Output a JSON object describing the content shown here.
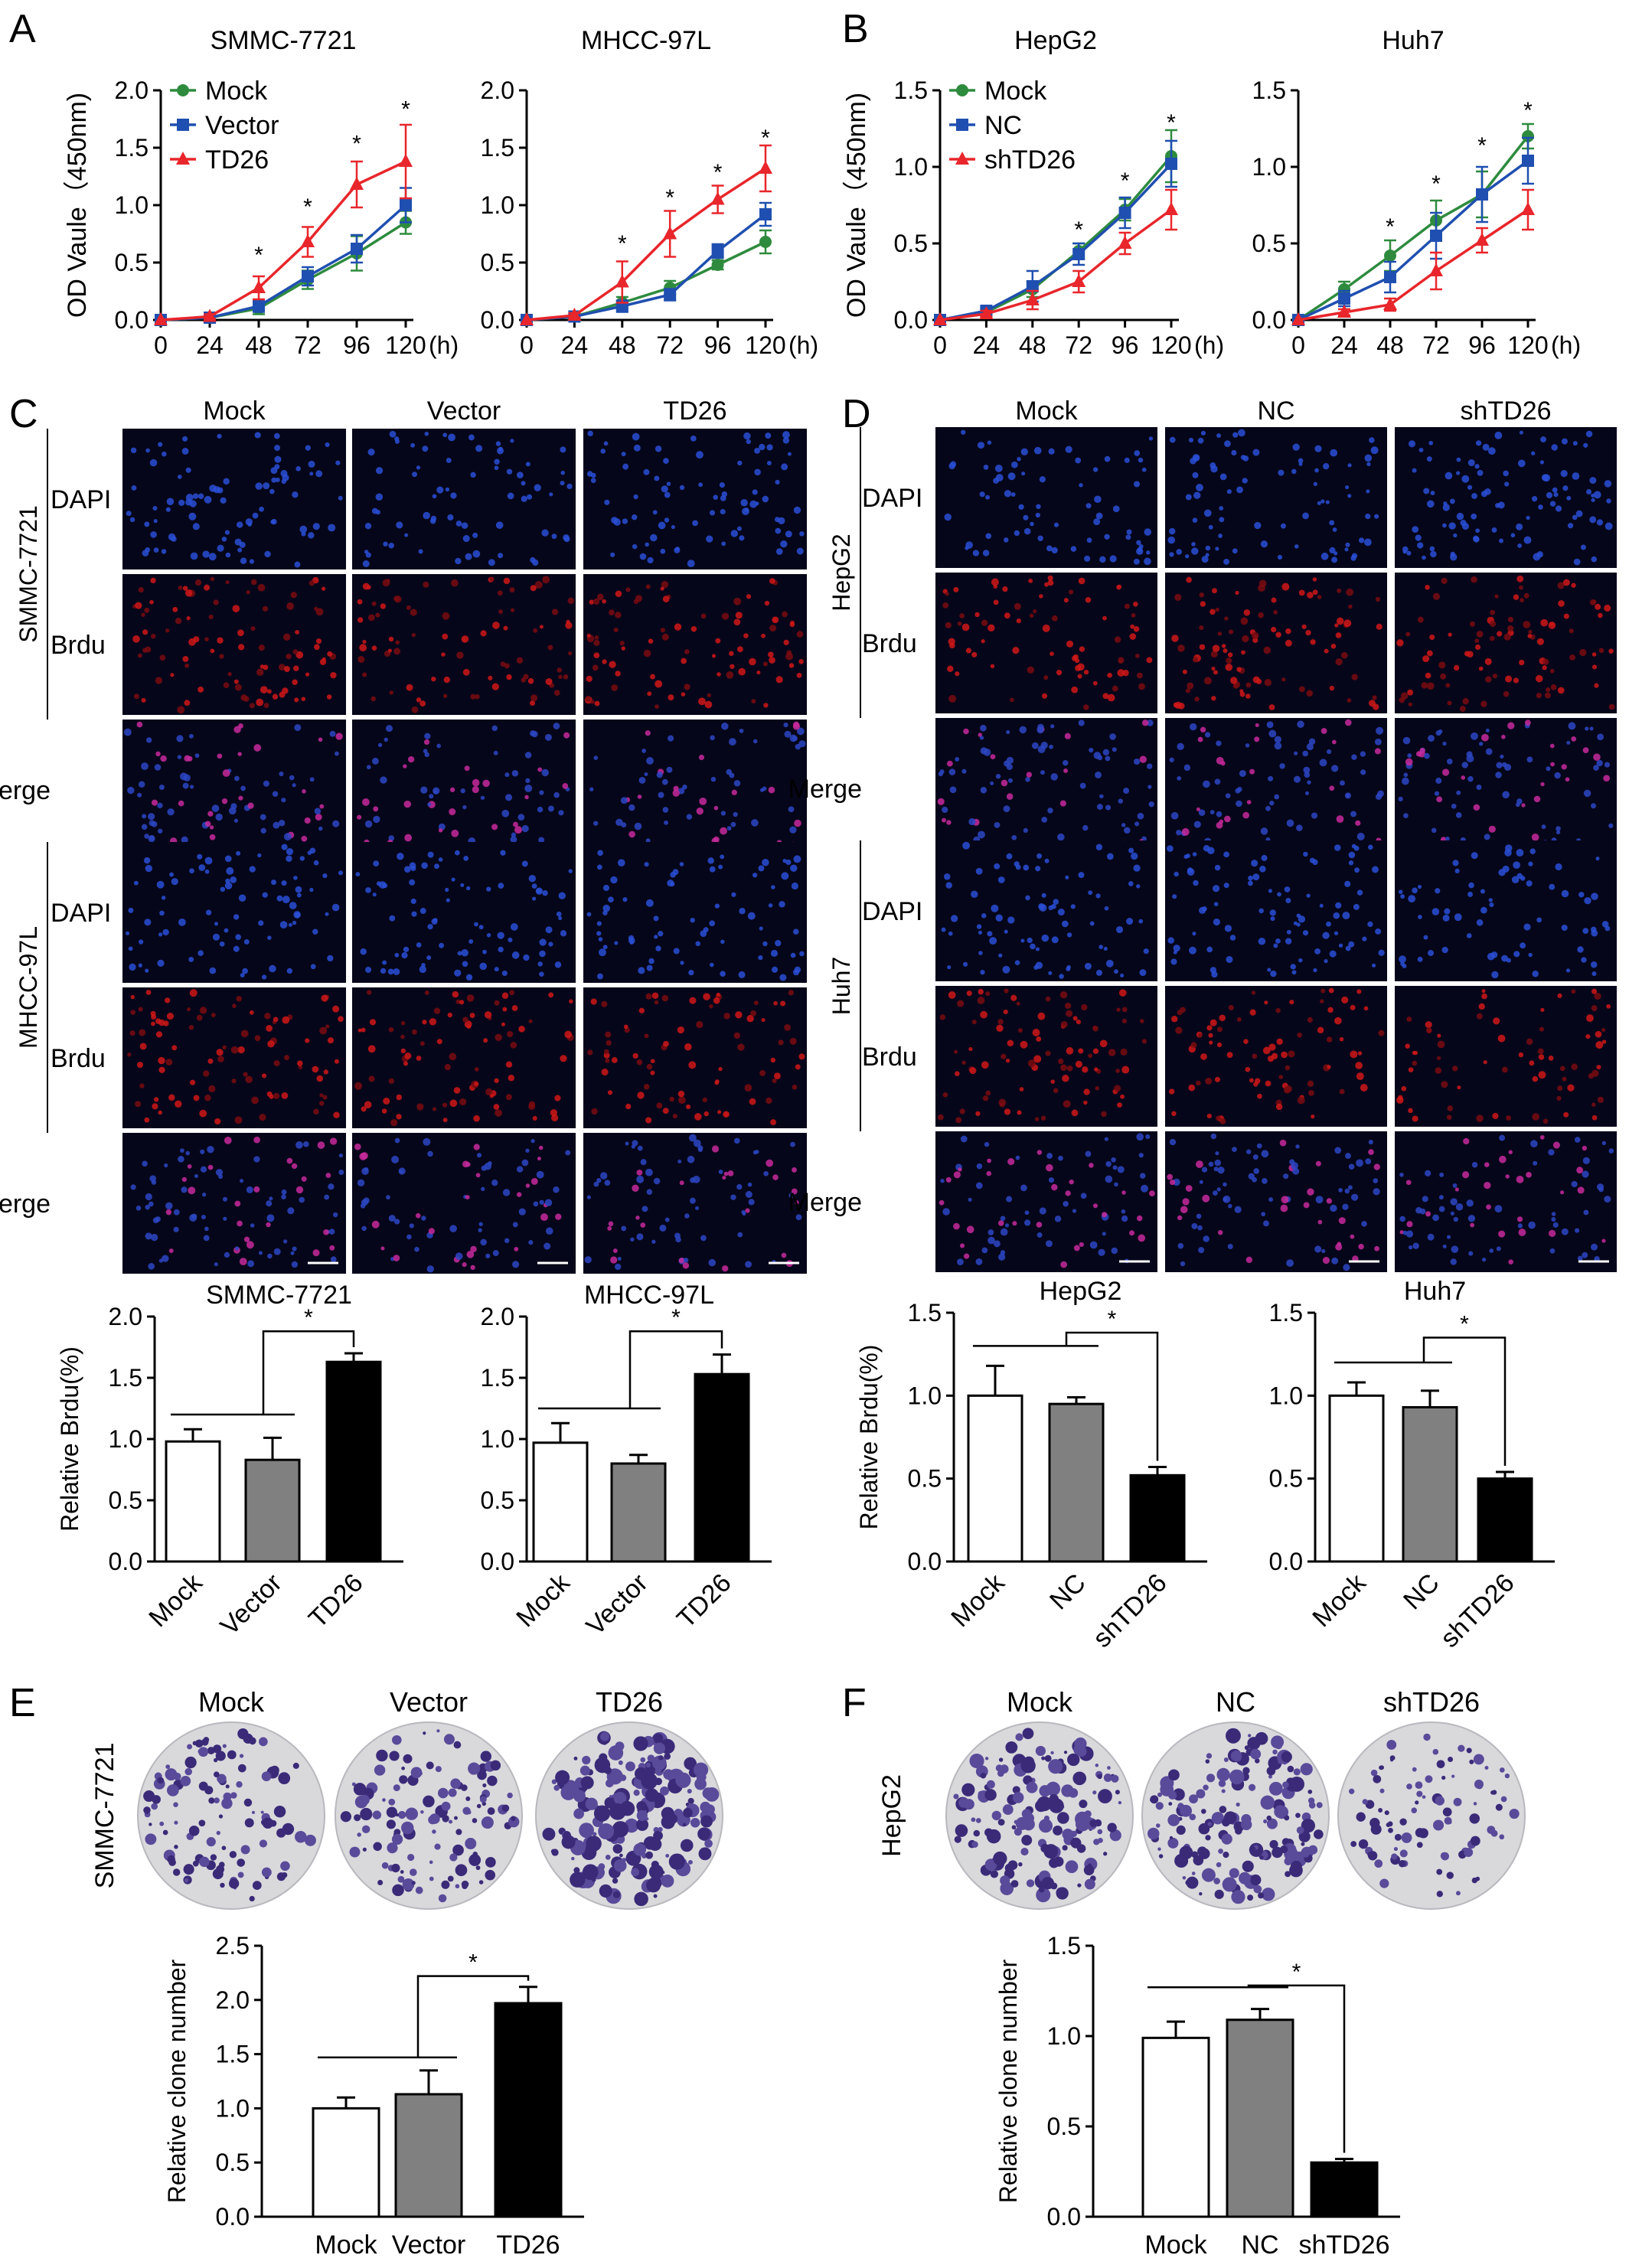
{
  "panel_letters": [
    "A",
    "B",
    "C",
    "D",
    "E",
    "F"
  ],
  "colors": {
    "mock": "#2e8b3e",
    "vector": "#1f4fb0",
    "td26": "#e8262b",
    "bar_gray": "#808080",
    "bar_black": "#000000",
    "bar_white": "#ffffff"
  },
  "shared": {
    "od_ylabel": "OD Vaule（450nm)",
    "brdu_ylabel": "Relative Brdu(%)",
    "clone_ylabel": "Relative clone number",
    "x_ticks": [
      "0",
      "24",
      "48",
      "72",
      "96",
      "120"
    ],
    "x_unit": "(h)",
    "sig": "*"
  },
  "chart_data": [
    {
      "id": "A1",
      "type": "line",
      "title": "SMMC-7721",
      "ylabel": "OD Vaule（450nm)",
      "ylim": [
        0,
        2.0
      ],
      "yticks": [
        "0.0",
        "0.5",
        "1.0",
        "1.5",
        "2.0"
      ],
      "x": [
        0,
        24,
        48,
        72,
        96,
        120
      ],
      "series": [
        {
          "name": "Mock",
          "color": "#2e8b3e",
          "marker": "circle",
          "values": [
            0.0,
            0.02,
            0.1,
            0.35,
            0.58,
            0.85
          ],
          "err": [
            0,
            0.02,
            0.05,
            0.08,
            0.15,
            0.1
          ]
        },
        {
          "name": "Vector",
          "color": "#1f4fb0",
          "marker": "square",
          "values": [
            0.0,
            0.02,
            0.12,
            0.38,
            0.62,
            1.0
          ],
          "err": [
            0,
            0.02,
            0.05,
            0.08,
            0.12,
            0.15
          ]
        },
        {
          "name": "TD26",
          "color": "#e8262b",
          "marker": "triangle",
          "values": [
            0.0,
            0.03,
            0.28,
            0.68,
            1.18,
            1.38
          ],
          "err": [
            0,
            0.02,
            0.1,
            0.13,
            0.2,
            0.32
          ]
        }
      ],
      "sig_x": [
        48,
        72,
        96,
        120
      ],
      "sig_y": [
        0.58,
        1.0,
        1.55,
        1.85
      ]
    },
    {
      "id": "A2",
      "type": "line",
      "title": "MHCC-97L",
      "ylabel": "",
      "ylim": [
        0,
        2.0
      ],
      "yticks": [
        "0.0",
        "0.5",
        "1.0",
        "1.5",
        "2.0"
      ],
      "x": [
        0,
        24,
        48,
        72,
        96,
        120
      ],
      "series": [
        {
          "name": "Mock",
          "color": "#2e8b3e",
          "marker": "circle",
          "values": [
            0.0,
            0.03,
            0.15,
            0.28,
            0.48,
            0.68
          ],
          "err": [
            0,
            0.02,
            0.05,
            0.06,
            0.04,
            0.1
          ]
        },
        {
          "name": "Vector",
          "color": "#1f4fb0",
          "marker": "square",
          "values": [
            0.0,
            0.03,
            0.12,
            0.22,
            0.6,
            0.92
          ],
          "err": [
            0,
            0.02,
            0.05,
            0.05,
            0.06,
            0.1
          ]
        },
        {
          "name": "TD26",
          "color": "#e8262b",
          "marker": "triangle",
          "values": [
            0.0,
            0.04,
            0.33,
            0.75,
            1.05,
            1.32
          ],
          "err": [
            0,
            0.02,
            0.18,
            0.2,
            0.12,
            0.2
          ]
        }
      ],
      "sig_x": [
        48,
        72,
        96,
        120
      ],
      "sig_y": [
        0.68,
        1.08,
        1.3,
        1.6
      ]
    },
    {
      "id": "B1",
      "type": "line",
      "title": "HepG2",
      "ylabel": "OD Vaule（450nm)",
      "ylim": [
        0,
        1.5
      ],
      "yticks": [
        "0.0",
        "0.5",
        "1.0",
        "1.5"
      ],
      "x": [
        0,
        24,
        48,
        72,
        96,
        120
      ],
      "series": [
        {
          "name": "Mock",
          "color": "#2e8b3e",
          "marker": "circle",
          "values": [
            0.0,
            0.05,
            0.2,
            0.45,
            0.72,
            1.07
          ],
          "err": [
            0,
            0.02,
            0.05,
            0.05,
            0.07,
            0.17
          ]
        },
        {
          "name": "NC",
          "color": "#1f4fb0",
          "marker": "square",
          "values": [
            0.0,
            0.06,
            0.22,
            0.43,
            0.7,
            1.02
          ],
          "err": [
            0,
            0.02,
            0.1,
            0.07,
            0.1,
            0.15
          ]
        },
        {
          "name": "shTD26",
          "color": "#e8262b",
          "marker": "triangle",
          "values": [
            0.0,
            0.04,
            0.13,
            0.25,
            0.5,
            0.72
          ],
          "err": [
            0,
            0.02,
            0.06,
            0.07,
            0.07,
            0.13
          ]
        }
      ],
      "sig_x": [
        72,
        96,
        120
      ],
      "sig_y": [
        0.6,
        0.92,
        1.3
      ]
    },
    {
      "id": "B2",
      "type": "line",
      "title": "Huh7",
      "ylabel": "",
      "ylim": [
        0,
        1.5
      ],
      "yticks": [
        "0.0",
        "0.5",
        "1.0",
        "1.5"
      ],
      "x": [
        0,
        24,
        48,
        72,
        96,
        120
      ],
      "series": [
        {
          "name": "Mock",
          "color": "#2e8b3e",
          "marker": "circle",
          "values": [
            0.0,
            0.2,
            0.42,
            0.65,
            0.82,
            1.2
          ],
          "err": [
            0,
            0.05,
            0.1,
            0.13,
            0.15,
            0.08
          ]
        },
        {
          "name": "NC",
          "color": "#1f4fb0",
          "marker": "square",
          "values": [
            0.0,
            0.14,
            0.28,
            0.55,
            0.82,
            1.04
          ],
          "err": [
            0,
            0.05,
            0.1,
            0.15,
            0.18,
            0.15
          ]
        },
        {
          "name": "shTD26",
          "color": "#e8262b",
          "marker": "triangle",
          "values": [
            0.0,
            0.05,
            0.1,
            0.32,
            0.52,
            0.72
          ],
          "err": [
            0,
            0.02,
            0.04,
            0.12,
            0.08,
            0.13
          ]
        }
      ],
      "sig_x": [
        48,
        72,
        96,
        120
      ],
      "sig_y": [
        0.62,
        0.9,
        1.15,
        1.38
      ]
    },
    {
      "id": "C1",
      "type": "bar",
      "title": "SMMC-7721",
      "ylabel": "Relative Brdu(%)",
      "ylim": [
        0,
        2.0
      ],
      "yticks": [
        "0.0",
        "0.5",
        "1.0",
        "1.5",
        "2.0"
      ],
      "categories": [
        "Mock",
        "Vector",
        "TD26"
      ],
      "values": [
        0.98,
        0.83,
        1.63
      ],
      "err": [
        0.1,
        0.18,
        0.07
      ],
      "fills": [
        "#ffffff",
        "#808080",
        "#000000"
      ],
      "sig": {
        "groups": [
          0,
          1
        ],
        "target": 2,
        "y": 1.88
      }
    },
    {
      "id": "C2",
      "type": "bar",
      "title": "MHCC-97L",
      "ylabel": "",
      "ylim": [
        0,
        2.0
      ],
      "yticks": [
        "0.0",
        "0.5",
        "1.0",
        "1.5",
        "2.0"
      ],
      "categories": [
        "Mock",
        "Vector",
        "TD26"
      ],
      "values": [
        0.97,
        0.8,
        1.53
      ],
      "err": [
        0.16,
        0.07,
        0.16
      ],
      "fills": [
        "#ffffff",
        "#808080",
        "#000000"
      ],
      "sig": {
        "groups": [
          0,
          1
        ],
        "target": 2,
        "y": 1.88
      }
    },
    {
      "id": "D1",
      "type": "bar",
      "title": "HepG2",
      "ylabel": "Relative Brdu(%)",
      "ylim": [
        0,
        1.5
      ],
      "yticks": [
        "0.0",
        "0.5",
        "1.0",
        "1.5"
      ],
      "categories": [
        "Mock",
        "NC",
        "shTD26"
      ],
      "values": [
        1.0,
        0.95,
        0.52
      ],
      "err": [
        0.18,
        0.04,
        0.05
      ],
      "fills": [
        "#ffffff",
        "#808080",
        "#000000"
      ],
      "sig": {
        "groups": [
          0,
          1
        ],
        "target": 2,
        "y": 1.38
      }
    },
    {
      "id": "D2",
      "type": "bar",
      "title": "Huh7",
      "ylabel": "",
      "ylim": [
        0,
        1.5
      ],
      "yticks": [
        "0.0",
        "0.5",
        "1.0",
        "1.5"
      ],
      "categories": [
        "Mock",
        "NC",
        "shTD26"
      ],
      "values": [
        1.0,
        0.93,
        0.5
      ],
      "err": [
        0.08,
        0.1,
        0.04
      ],
      "fills": [
        "#ffffff",
        "#808080",
        "#000000"
      ],
      "sig": {
        "groups": [
          0,
          1
        ],
        "target": 2,
        "y": 1.35
      }
    },
    {
      "id": "E",
      "type": "bar",
      "title": "",
      "ylabel": "Relative clone number",
      "ylim": [
        0,
        2.5
      ],
      "yticks": [
        "0.0",
        "0.5",
        "1.0",
        "1.5",
        "2.0",
        "2.5"
      ],
      "categories": [
        "Mock",
        "Vector",
        "TD26"
      ],
      "values": [
        1.0,
        1.13,
        1.97
      ],
      "err": [
        0.1,
        0.22,
        0.15
      ],
      "fills": [
        "#ffffff",
        "#808080",
        "#000000"
      ],
      "sig": {
        "groups": [
          0,
          1
        ],
        "target": 2,
        "y": 2.22
      }
    },
    {
      "id": "F",
      "type": "bar",
      "title": "",
      "ylabel": "Relative clone number",
      "ylim": [
        0,
        1.5
      ],
      "yticks": [
        "0.0",
        "0.5",
        "1.0",
        "1.5"
      ],
      "categories": [
        "Mock",
        "NC",
        "shTD26"
      ],
      "values": [
        0.99,
        1.09,
        0.3
      ],
      "err": [
        0.09,
        0.06,
        0.02
      ],
      "fills": [
        "#ffffff",
        "#808080",
        "#000000"
      ],
      "sig": {
        "groups": [
          0,
          1
        ],
        "target": 2,
        "y": 1.28
      }
    }
  ],
  "micrographs": {
    "C": {
      "columns": [
        "Mock",
        "Vector",
        "TD26"
      ],
      "groups": [
        "SMMC-7721",
        "MHCC-97L"
      ],
      "rows": [
        "DAPI",
        "Brdu",
        "Merge"
      ]
    },
    "D": {
      "columns": [
        "Mock",
        "NC",
        "shTD26"
      ],
      "groups": [
        "HepG2",
        "Huh7"
      ],
      "rows": [
        "DAPI",
        "Brdu",
        "Merge"
      ]
    }
  },
  "colony": {
    "E": {
      "columns": [
        "Mock",
        "Vector",
        "TD26"
      ],
      "row_label": "SMMC-7721",
      "density": [
        0.5,
        0.55,
        1.0
      ]
    },
    "F": {
      "columns": [
        "Mock",
        "NC",
        "shTD26"
      ],
      "row_label": "HepG2",
      "density": [
        0.8,
        0.85,
        0.35
      ]
    }
  }
}
